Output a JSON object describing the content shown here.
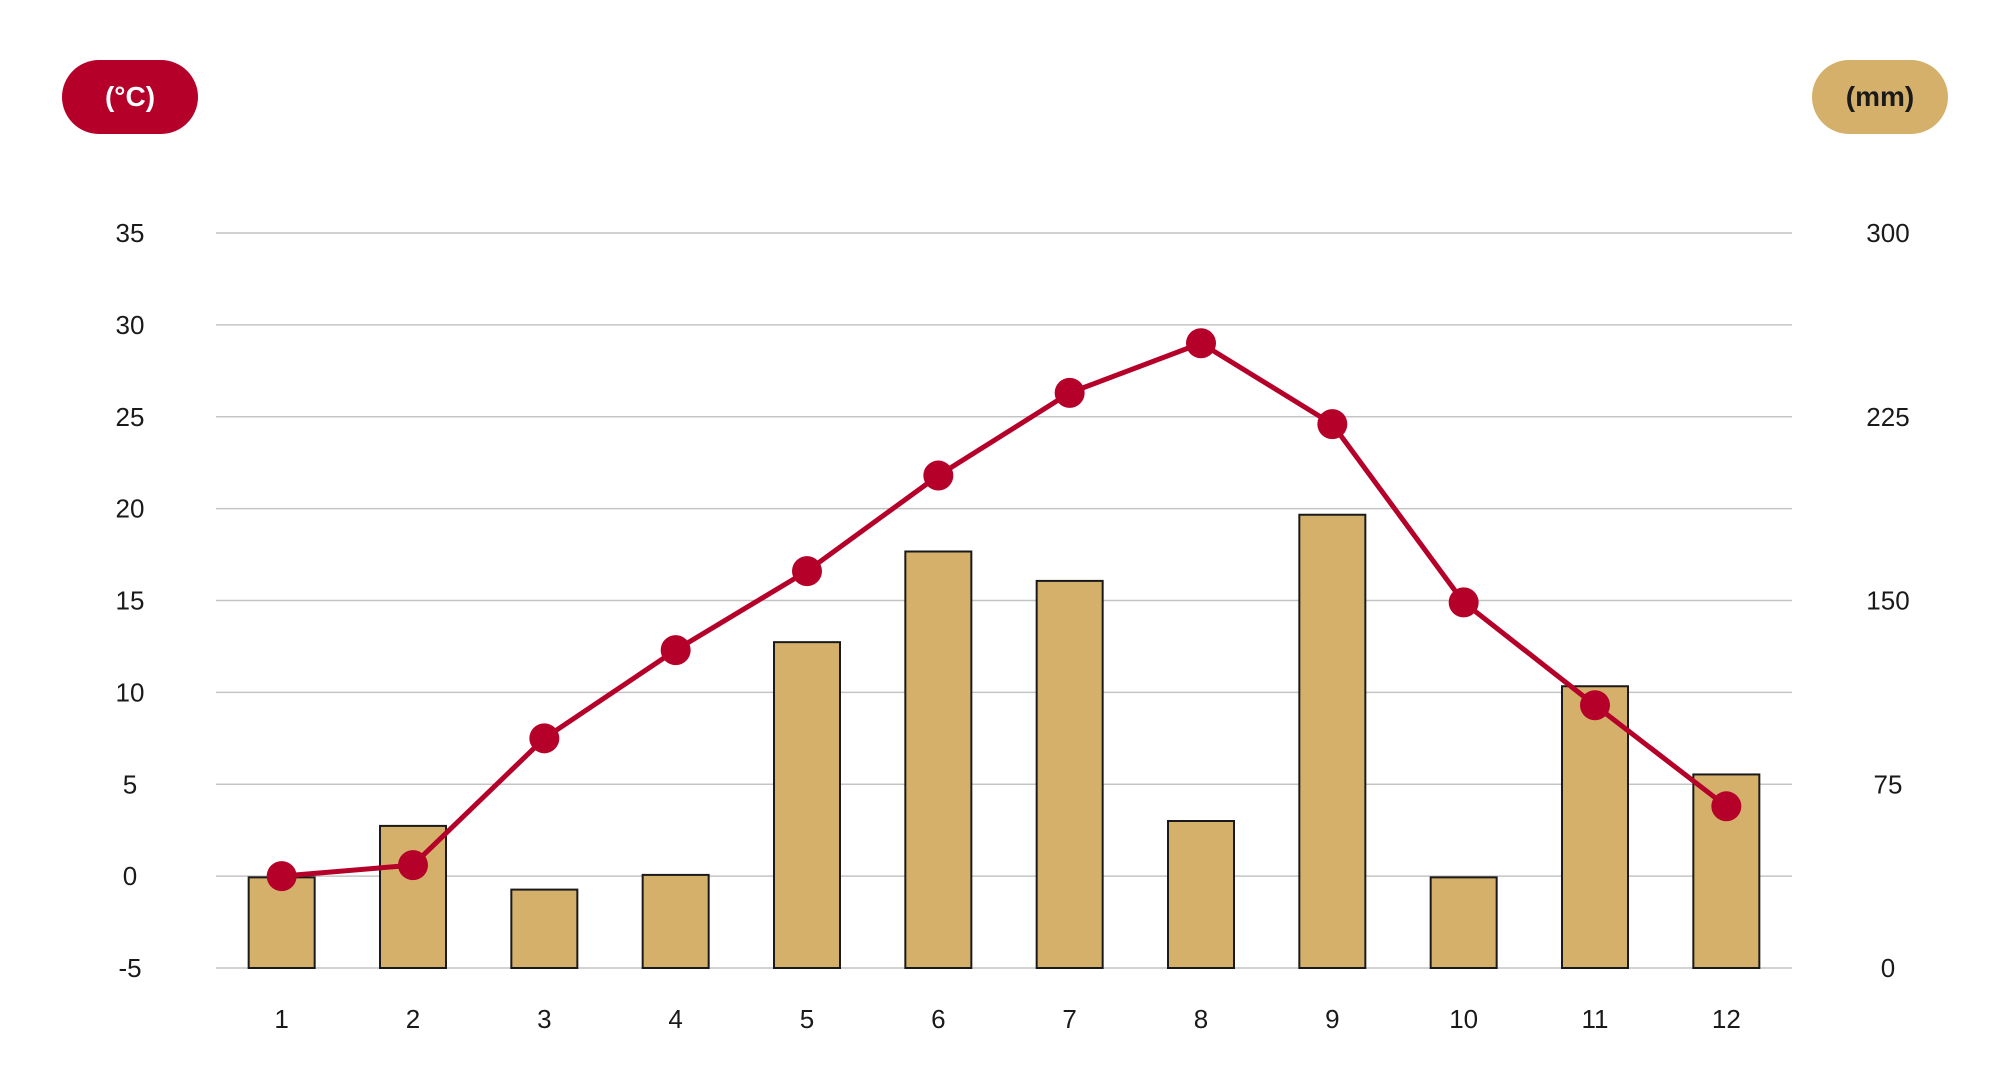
{
  "left_unit": "(°C)",
  "right_unit": "(mm)",
  "colors": {
    "temperature": "#b5002a",
    "precipitation": "#d4b06b",
    "grid": "#c4c4c4"
  },
  "chart_data": {
    "type": "bar",
    "categories": [
      "1",
      "2",
      "3",
      "4",
      "5",
      "6",
      "7",
      "8",
      "9",
      "10",
      "11",
      "12"
    ],
    "series": [
      {
        "type": "bar",
        "axis": "right",
        "values": [
          37,
          58,
          32,
          38,
          133,
          170,
          158,
          60,
          185,
          37,
          115,
          79
        ]
      },
      {
        "type": "line",
        "axis": "left",
        "values": [
          0.0,
          0.6,
          7.5,
          12.3,
          16.6,
          21.8,
          26.3,
          29.0,
          24.6,
          14.9,
          9.3,
          3.8
        ]
      }
    ],
    "y_left": {
      "ticks": [
        "35",
        "30",
        "25",
        "20",
        "15",
        "10",
        "5",
        "0",
        "-5"
      ],
      "ylim": [
        -5,
        35
      ]
    },
    "y_right": {
      "ticks": [
        "300",
        "225",
        "150",
        "75",
        "0"
      ],
      "ylim": [
        0,
        300
      ]
    },
    "grid": true,
    "legend": "none"
  }
}
